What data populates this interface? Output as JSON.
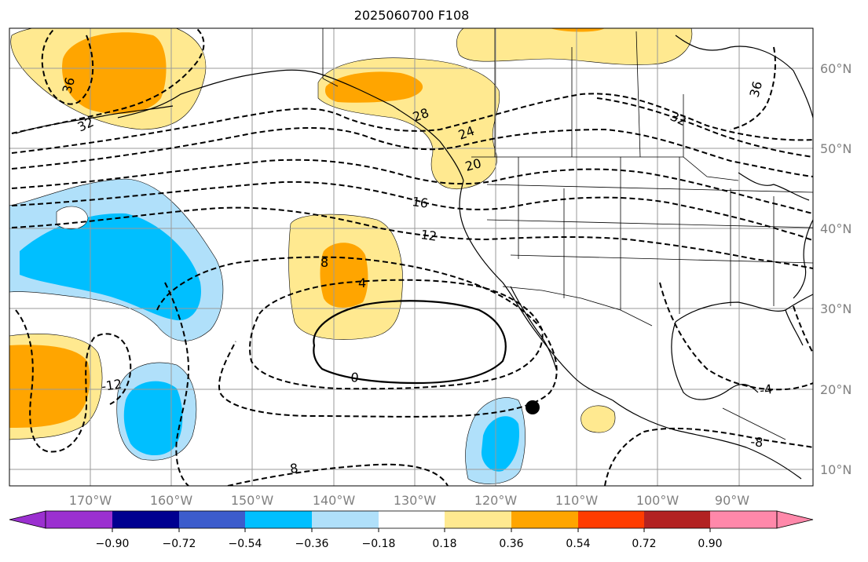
{
  "title": "2025060700 F108",
  "longitude_labels": [
    "170°W",
    "160°W",
    "150°W",
    "140°W",
    "130°W",
    "120°W",
    "110°W",
    "100°W",
    "90°W"
  ],
  "latitude_labels": [
    "60°N",
    "50°N",
    "40°N",
    "30°N",
    "20°N",
    "10°N"
  ],
  "colorbar": {
    "ticks": [
      "−0.90",
      "−0.72",
      "−0.54",
      "−0.36",
      "−0.18",
      "0.18",
      "0.36",
      "0.54",
      "0.72",
      "0.90"
    ],
    "colors": [
      "#9b30d0",
      "#000090",
      "#3c5ccc",
      "#00bfff",
      "#b0e0fa",
      "#ffffff",
      "#ffe990",
      "#ffa500",
      "#ff3c00",
      "#b22222",
      "#ff88aa"
    ]
  },
  "shading_colors": {
    "light_yellow": "#ffe990",
    "orange": "#ffa500",
    "light_blue": "#b0e0fa",
    "cyan": "#00bfff"
  },
  "contour_labels": [
    "36",
    "32",
    "28",
    "24",
    "20",
    "16",
    "12",
    "8",
    "4",
    "0",
    "-12",
    "-4",
    "-8",
    "8",
    "32",
    "36"
  ],
  "marker": "black-dot"
}
